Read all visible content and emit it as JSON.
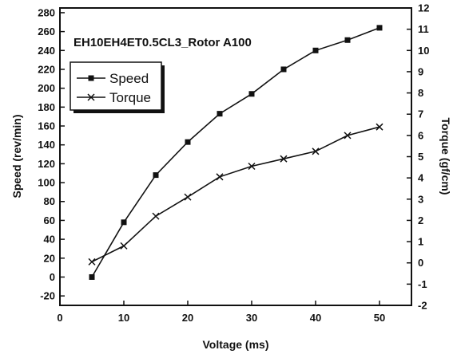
{
  "chart_data": {
    "type": "line",
    "annotation": "EH10EH4ET0.5CL3_Rotor A100",
    "xlabel": "Voltage (ms)",
    "ylabel_left": "Speed (rev/min)",
    "ylabel_right": "Torque (gf/cm)",
    "xlim": [
      0,
      55
    ],
    "ylim_left": [
      -30,
      285
    ],
    "ylim_right": [
      -2,
      12
    ],
    "x_ticks": [
      0,
      10,
      20,
      30,
      40,
      50
    ],
    "y_ticks_left": [
      -20,
      0,
      20,
      40,
      60,
      80,
      100,
      120,
      140,
      160,
      180,
      200,
      220,
      240,
      260,
      280
    ],
    "y_ticks_right": [
      -2,
      -1,
      0,
      1,
      2,
      3,
      4,
      5,
      6,
      7,
      8,
      9,
      10,
      11,
      12
    ],
    "legend_position": "top-left",
    "grid": false,
    "series": [
      {
        "name": "Speed",
        "marker": "square",
        "axis": "left",
        "x": [
          5,
          10,
          15,
          20,
          25,
          30,
          35,
          40,
          45,
          50
        ],
        "values": [
          0,
          58,
          108,
          143,
          173,
          194,
          220,
          240,
          251,
          264
        ]
      },
      {
        "name": "Torque",
        "marker": "x",
        "axis": "right",
        "x": [
          5,
          10,
          15,
          20,
          25,
          30,
          35,
          40,
          45,
          50
        ],
        "values": [
          0.05,
          0.8,
          2.2,
          3.1,
          4.05,
          4.55,
          4.9,
          5.25,
          6.0,
          6.4
        ]
      }
    ]
  },
  "colors": {
    "line": "#111111",
    "background": "#ffffff"
  }
}
